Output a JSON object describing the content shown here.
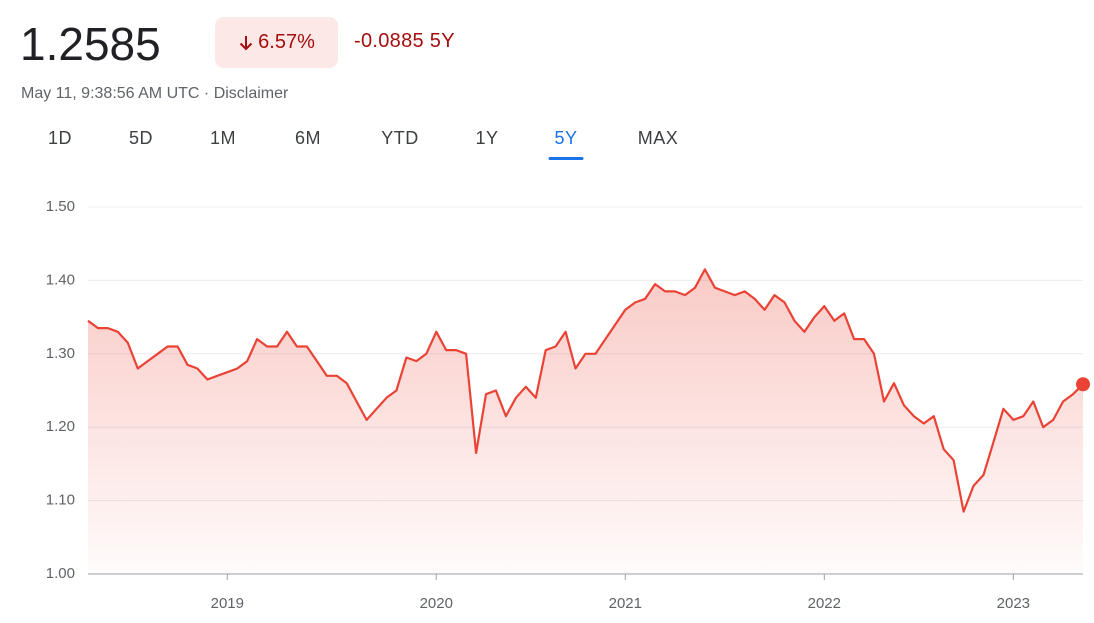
{
  "header": {
    "price": "1.2585",
    "change_percent": "6.57%",
    "change": "-0.0885",
    "period": "5Y",
    "timestamp": "May 11, 9:38:56 AM UTC",
    "separator": "·",
    "disclaimer": "Disclaimer"
  },
  "tabs": [
    "1D",
    "5D",
    "1M",
    "6M",
    "YTD",
    "1Y",
    "5Y",
    "MAX"
  ],
  "active_tab_index": 6,
  "chart_data": {
    "type": "line",
    "categories": [
      null,
      null,
      null,
      null,
      null,
      null,
      null,
      null,
      null,
      null,
      null,
      null,
      null,
      null,
      "2019",
      null,
      null,
      null,
      null,
      null,
      null,
      null,
      null,
      null,
      null,
      null,
      null,
      null,
      null,
      null,
      null,
      null,
      null,
      null,
      null,
      "2020",
      null,
      null,
      null,
      null,
      null,
      null,
      null,
      null,
      null,
      null,
      null,
      null,
      null,
      null,
      null,
      null,
      null,
      null,
      "2021",
      null,
      null,
      null,
      null,
      null,
      null,
      null,
      null,
      null,
      null,
      null,
      null,
      null,
      null,
      null,
      null,
      null,
      null,
      null,
      "2022",
      null,
      null,
      null,
      null,
      null,
      null,
      null,
      null,
      null,
      null,
      null,
      null,
      null,
      null,
      null,
      null,
      null,
      null,
      "2023",
      null,
      null,
      null,
      null,
      null,
      null,
      null
    ],
    "series": [
      {
        "color": "#ea4335",
        "values": [
          1.345,
          1.335,
          1.335,
          1.33,
          1.315,
          1.28,
          1.29,
          1.3,
          1.31,
          1.31,
          1.285,
          1.28,
          1.265,
          1.27,
          1.275,
          1.28,
          1.29,
          1.32,
          1.31,
          1.31,
          1.33,
          1.31,
          1.31,
          1.29,
          1.27,
          1.27,
          1.26,
          1.235,
          1.21,
          1.225,
          1.24,
          1.25,
          1.295,
          1.29,
          1.3,
          1.33,
          1.305,
          1.305,
          1.3,
          1.165,
          1.245,
          1.25,
          1.215,
          1.24,
          1.255,
          1.24,
          1.305,
          1.31,
          1.33,
          1.28,
          1.3,
          1.3,
          1.32,
          1.34,
          1.36,
          1.37,
          1.375,
          1.395,
          1.385,
          1.385,
          1.38,
          1.39,
          1.415,
          1.39,
          1.385,
          1.38,
          1.385,
          1.375,
          1.36,
          1.38,
          1.37,
          1.345,
          1.33,
          1.35,
          1.365,
          1.345,
          1.355,
          1.32,
          1.32,
          1.3,
          1.235,
          1.26,
          1.23,
          1.215,
          1.205,
          1.215,
          1.17,
          1.155,
          1.085,
          1.12,
          1.135,
          1.18,
          1.225,
          1.21,
          1.215,
          1.235,
          1.2,
          1.21,
          1.235,
          1.245,
          1.2585
        ]
      }
    ],
    "ylim": [
      1.0,
      1.5
    ],
    "yticks": [
      {
        "value": 1.0,
        "label": "1.00"
      },
      {
        "value": 1.1,
        "label": "1.10"
      },
      {
        "value": 1.2,
        "label": "1.20"
      },
      {
        "value": 1.3,
        "label": "1.30"
      },
      {
        "value": 1.4,
        "label": "1.40"
      },
      {
        "value": 1.5,
        "label": "1.50"
      }
    ],
    "grid": true,
    "area_fill": true,
    "end_marker": true
  }
}
